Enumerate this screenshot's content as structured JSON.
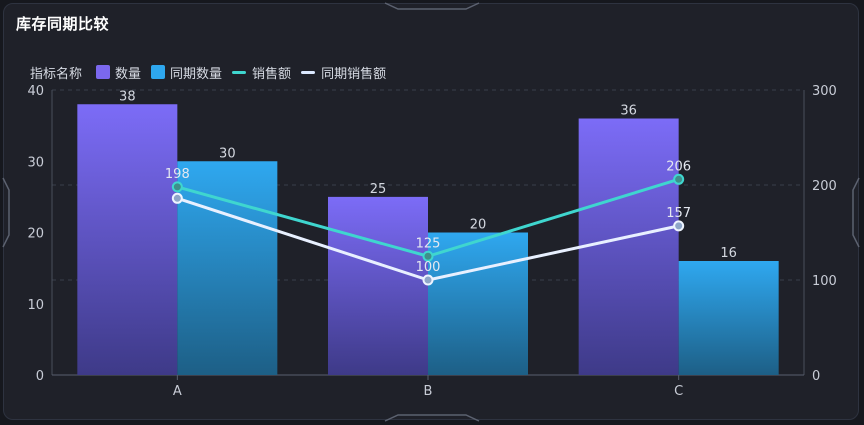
{
  "panel": {
    "title": "库存同期比较"
  },
  "legend": {
    "title": "指标名称",
    "items": [
      {
        "label": "数量",
        "kind": "box",
        "color": "#7b68ee"
      },
      {
        "label": "同期数量",
        "kind": "box",
        "color": "#2ea7ee"
      },
      {
        "label": "销售额",
        "kind": "line",
        "color": "#3fd6cf"
      },
      {
        "label": "同期销售额",
        "kind": "line",
        "color": "#dbe8ff"
      }
    ]
  },
  "chart_data": {
    "type": "bar",
    "categories": [
      "A",
      "B",
      "C"
    ],
    "series": [
      {
        "name": "数量",
        "type": "bar",
        "axis": "left",
        "values": [
          38,
          25,
          36
        ],
        "color_top": "#7c6cf7",
        "color_bottom": "#3e3a88"
      },
      {
        "name": "同期数量",
        "type": "bar",
        "axis": "left",
        "values": [
          30,
          20,
          16
        ],
        "color_top": "#2fa8f0",
        "color_bottom": "#1d5f86"
      },
      {
        "name": "销售额",
        "type": "line",
        "axis": "right",
        "values": [
          198,
          125,
          206
        ],
        "color": "#3fd6cf"
      },
      {
        "name": "同期销售额",
        "type": "line",
        "axis": "right",
        "values": [
          186,
          100,
          157
        ],
        "color": "#e8f0ff"
      }
    ],
    "data_labels": {
      "bars": [
        [
          "38",
          "25",
          "36"
        ],
        [
          "30",
          "20",
          "16"
        ]
      ],
      "lines": [
        [
          "198",
          "125",
          "206"
        ],
        [
          "",
          "100",
          "157"
        ]
      ]
    },
    "y_left": {
      "min": 0,
      "max": 40,
      "ticks": [
        0,
        10,
        20,
        30,
        40
      ]
    },
    "y_right": {
      "min": 0,
      "max": 300,
      "ticks": [
        0,
        100,
        200,
        300
      ]
    },
    "legend_position": "top-left",
    "grid": "dashed-horizontal"
  }
}
